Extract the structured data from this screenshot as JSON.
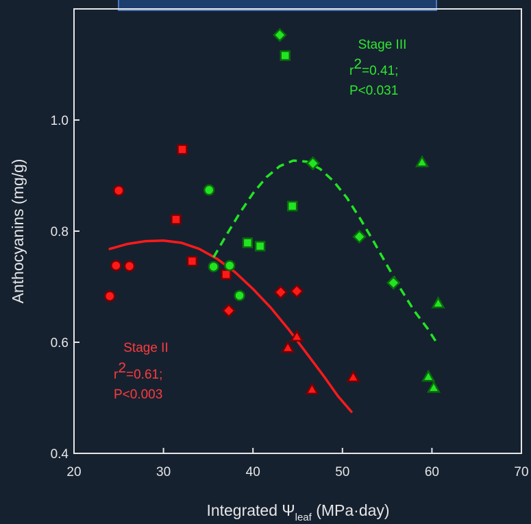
{
  "chart_data": {
    "type": "scatter",
    "title": "",
    "xlabel": {
      "main": "Integrated Ψ",
      "sub": "leaf",
      "unit": " (MPa·day)"
    },
    "ylabel": "Anthocyanins (mg/g)",
    "xlim": [
      20,
      70
    ],
    "ylim": [
      0.4,
      1.2
    ],
    "xticks": [
      20,
      30,
      40,
      50,
      60,
      70
    ],
    "yticks": [
      0.4,
      0.6,
      0.8,
      1.0
    ],
    "grid": false,
    "colors": {
      "background": "#162130",
      "axis": "#e6e6e6",
      "stage2": "#ff1a1a",
      "stage2_text": "#ff3b3b",
      "stage3": "#22e422",
      "stage3_text": "#2ee82e",
      "marker_edge_red": "#7a0000",
      "marker_edge_green": "#0a6a0a",
      "top_bar": "#1d3d6d",
      "top_bar_edge": "#4a79c0"
    },
    "series": [
      {
        "group": "stage2",
        "marker": "circle",
        "points": [
          [
            24.0,
            0.683
          ],
          [
            24.7,
            0.738
          ],
          [
            25.0,
            0.873
          ],
          [
            26.2,
            0.737
          ]
        ]
      },
      {
        "group": "stage2",
        "marker": "square",
        "points": [
          [
            31.4,
            0.821
          ],
          [
            32.1,
            0.947
          ],
          [
            33.2,
            0.746
          ],
          [
            37.0,
            0.722
          ]
        ]
      },
      {
        "group": "stage2",
        "marker": "diamond",
        "points": [
          [
            37.3,
            0.657
          ],
          [
            43.1,
            0.69
          ],
          [
            44.9,
            0.692
          ]
        ]
      },
      {
        "group": "stage2",
        "marker": "triangle",
        "points": [
          [
            43.9,
            0.59
          ],
          [
            44.9,
            0.61
          ],
          [
            46.6,
            0.515
          ],
          [
            51.2,
            0.537
          ]
        ]
      },
      {
        "group": "stage3",
        "marker": "circle",
        "points": [
          [
            35.1,
            0.874
          ],
          [
            35.6,
            0.736
          ],
          [
            37.4,
            0.738
          ],
          [
            38.5,
            0.684
          ]
        ]
      },
      {
        "group": "stage3",
        "marker": "square",
        "points": [
          [
            39.4,
            0.779
          ],
          [
            40.8,
            0.773
          ],
          [
            43.6,
            1.116
          ],
          [
            44.4,
            0.845
          ]
        ]
      },
      {
        "group": "stage3",
        "marker": "diamond",
        "points": [
          [
            43.0,
            1.153
          ],
          [
            46.7,
            0.922
          ],
          [
            51.9,
            0.79
          ],
          [
            55.7,
            0.707
          ]
        ]
      },
      {
        "group": "stage3",
        "marker": "triangle",
        "points": [
          [
            58.9,
            0.924
          ],
          [
            59.6,
            0.538
          ],
          [
            60.2,
            0.518
          ],
          [
            60.7,
            0.67
          ]
        ]
      }
    ],
    "fits": [
      {
        "group": "stage2",
        "style": "solid",
        "points": [
          [
            24.0,
            0.768
          ],
          [
            26.0,
            0.777
          ],
          [
            28.0,
            0.782
          ],
          [
            30.0,
            0.783
          ],
          [
            32.0,
            0.779
          ],
          [
            34.0,
            0.768
          ],
          [
            36.0,
            0.75
          ],
          [
            38.0,
            0.726
          ],
          [
            40.0,
            0.696
          ],
          [
            42.0,
            0.662
          ],
          [
            44.0,
            0.623
          ],
          [
            46.0,
            0.58
          ],
          [
            48.0,
            0.537
          ],
          [
            49.5,
            0.503
          ],
          [
            51.0,
            0.475
          ]
        ]
      },
      {
        "group": "stage3",
        "style": "dashed",
        "points": [
          [
            35.6,
            0.753
          ],
          [
            37.0,
            0.792
          ],
          [
            38.5,
            0.832
          ],
          [
            40.0,
            0.868
          ],
          [
            41.5,
            0.897
          ],
          [
            43.0,
            0.917
          ],
          [
            44.5,
            0.927
          ],
          [
            46.0,
            0.925
          ],
          [
            47.5,
            0.912
          ],
          [
            49.0,
            0.89
          ],
          [
            50.5,
            0.86
          ],
          [
            52.0,
            0.822
          ],
          [
            53.5,
            0.781
          ],
          [
            55.0,
            0.738
          ],
          [
            56.5,
            0.696
          ],
          [
            58.0,
            0.657
          ],
          [
            59.5,
            0.625
          ],
          [
            60.5,
            0.6
          ]
        ]
      }
    ],
    "annotations": {
      "stage2": {
        "lines": [
          "Stage II",
          "r",
          "2",
          "=0.61;",
          "P<0.003"
        ]
      },
      "stage3": {
        "lines": [
          "Stage III",
          "r",
          "2",
          "=0.41;",
          "P<0.031"
        ]
      }
    }
  }
}
